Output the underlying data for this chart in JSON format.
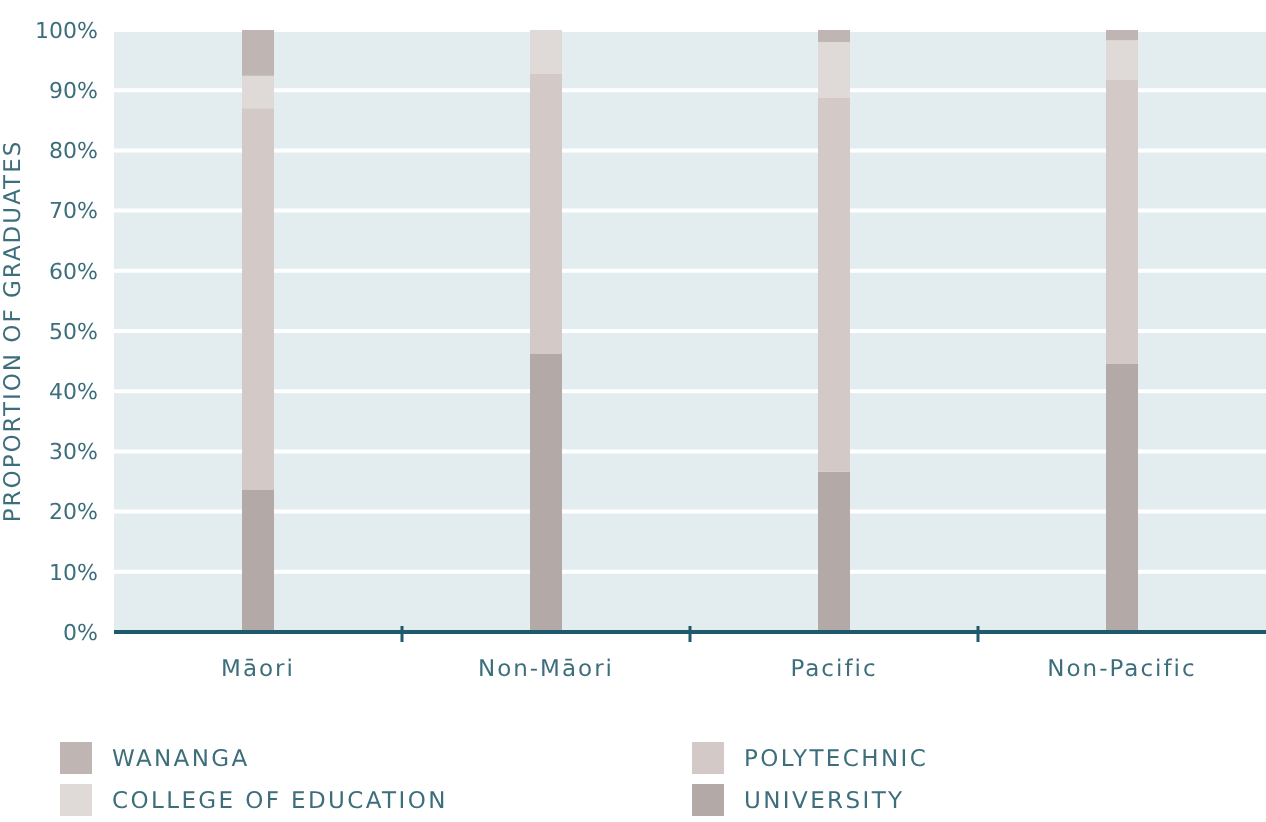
{
  "chart_data": {
    "type": "bar",
    "stacked": true,
    "ylabel": "PROPORTION OF GRADUATES",
    "categories": [
      "Māori",
      "Non-Māori",
      "Pacific",
      "Non-Pacific"
    ],
    "series": [
      {
        "name": "UNIVERSITY",
        "color": "#b3a9a7",
        "values": [
          23.6,
          46.2,
          26.6,
          44.5
        ]
      },
      {
        "name": "POLYTECHNIC",
        "color": "#d3cac7",
        "values": [
          63.4,
          46.5,
          62.1,
          47.2
        ]
      },
      {
        "name": "COLLEGE OF EDUCATION",
        "color": "#dfd9d7",
        "values": [
          5.4,
          7.3,
          9.3,
          6.6
        ]
      },
      {
        "name": "WANANGA",
        "color": "#bfb5b3",
        "values": [
          7.6,
          0,
          2.0,
          1.7
        ]
      }
    ],
    "ylim": [
      0,
      100
    ],
    "yticks": [
      {
        "value": 0,
        "label": "0%"
      },
      {
        "value": 10,
        "label": "10%"
      },
      {
        "value": 20,
        "label": "20%"
      },
      {
        "value": 30,
        "label": "30%"
      },
      {
        "value": 40,
        "label": "40%"
      },
      {
        "value": 50,
        "label": "50%"
      },
      {
        "value": 60,
        "label": "60%"
      },
      {
        "value": 70,
        "label": "70%"
      },
      {
        "value": 80,
        "label": "80%"
      },
      {
        "value": 90,
        "label": "90%"
      },
      {
        "value": 100,
        "label": "100%"
      }
    ],
    "grid": "y",
    "legend": "bottom"
  }
}
